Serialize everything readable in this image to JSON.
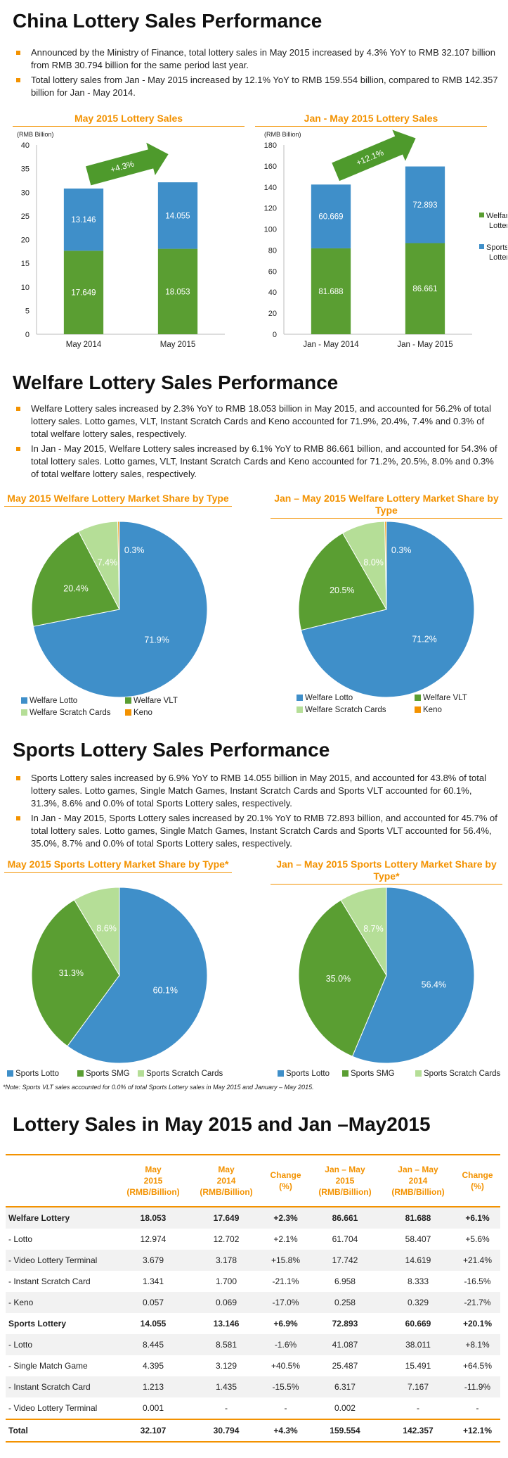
{
  "sections": {
    "china_title": "China Lottery Sales Performance",
    "welfare_title": "Welfare Lottery Sales Performance",
    "sports_title": "Sports Lottery Sales Performance",
    "table_title": "Lottery Sales in  May 2015 and Jan –May2015"
  },
  "china_bullets": [
    "Announced by the Ministry of Finance, total lottery sales in May 2015 increased by 4.3% YoY to RMB 32.107 billion from RMB 30.794 billion for the same period last year.",
    "Total lottery sales from Jan - May 2015 increased by 12.1% YoY to RMB 159.554 billion, compared to RMB 142.357 billion for Jan - May 2014."
  ],
  "welfare_bullets": [
    "Welfare Lottery sales increased by 2.3% YoY to RMB 18.053 billion in May 2015, and accounted for 56.2% of total lottery sales. Lotto games, VLT, Instant Scratch Cards and Keno accounted for 71.9%, 20.4%, 7.4% and 0.3% of total welfare lottery sales, respectively.",
    "In Jan - May 2015, Welfare Lottery sales increased by 6.1% YoY to RMB 86.661 billion, and accounted for 54.3% of total lottery sales. Lotto games, VLT, Instant Scratch Cards and Keno accounted for 71.2%, 20.5%, 8.0% and 0.3% of total welfare lottery sales, respectively."
  ],
  "sports_bullets": [
    "Sports Lottery sales increased by 6.9% YoY to RMB 14.055 billion in May 2015, and accounted for 43.8% of total lottery sales. Lotto games, Single Match Games, Instant Scratch Cards and Sports VLT accounted for 60.1%, 31.3%, 8.6% and 0.0% of total Sports Lottery sales, respectively.",
    "In Jan - May 2015, Sports Lottery sales increased by 20.1% YoY to RMB 72.893 billion, and accounted for 45.7% of total lottery sales. Lotto games, Single Match Games, Instant Scratch Cards and Sports VLT accounted for 56.4%, 35.0%, 8.7% and 0.0% of total Sports Lottery sales, respectively."
  ],
  "colors": {
    "accent": "#f39200",
    "welfare_green": "#5a9e32",
    "sports_blue": "#3f8fc9",
    "light_green": "#b5de97",
    "keno_orange": "#f39200",
    "arrow_green": "#4e9a2c"
  },
  "chart_data": [
    {
      "type": "bar",
      "stacked": true,
      "title": "May 2015 Lottery Sales",
      "ylabel": "(RMB Billion)",
      "categories": [
        "May 2014",
        "May 2015"
      ],
      "series": [
        {
          "name": "Welfare Lottery",
          "values": [
            17.649,
            18.053
          ]
        },
        {
          "name": "Sports Lottery",
          "values": [
            13.146,
            14.055
          ]
        }
      ],
      "ylim": [
        0,
        40
      ],
      "yticks": [
        0,
        5,
        10,
        15,
        20,
        25,
        30,
        35,
        40
      ],
      "annotation": "+4.3%",
      "legend": "none"
    },
    {
      "type": "bar",
      "stacked": true,
      "title": "Jan - May 2015 Lottery Sales",
      "ylabel": "(RMB Billion)",
      "categories": [
        "Jan - May 2014",
        "Jan - May 2015"
      ],
      "series": [
        {
          "name": "Welfare Lottery",
          "values": [
            81.688,
            86.661
          ]
        },
        {
          "name": "Sports Lottery",
          "values": [
            60.669,
            72.893
          ]
        }
      ],
      "ylim": [
        0,
        180
      ],
      "yticks": [
        0,
        20,
        40,
        60,
        80,
        100,
        120,
        140,
        160,
        180
      ],
      "annotation": "+12.1%",
      "legend": "right",
      "legend_labels": [
        "Welfare\nLottery",
        "Sports\nLottery"
      ]
    },
    {
      "type": "pie",
      "title": "May 2015 Welfare Lottery Market Share by Type",
      "labels": [
        "Welfare Lotto",
        "Welfare VLT",
        "Welfare Scratch Cards",
        "Keno"
      ],
      "values": [
        71.9,
        20.4,
        7.4,
        0.3
      ],
      "value_labels": [
        "71.9%",
        "20.4%",
        "7.4%",
        "0.3%"
      ],
      "legend": "bottom"
    },
    {
      "type": "pie",
      "title": "Jan – May 2015 Welfare Lottery Market Share by Type",
      "labels": [
        "Welfare Lotto",
        "Welfare VLT",
        "Welfare Scratch Cards",
        "Keno"
      ],
      "values": [
        71.2,
        20.5,
        8.0,
        0.3
      ],
      "value_labels": [
        "71.2%",
        "20.5%",
        "8.0%",
        "0.3%"
      ],
      "legend": "bottom"
    },
    {
      "type": "pie",
      "title": "May 2015 Sports Lottery Market Share by Type*",
      "labels": [
        "Sports Lotto",
        "Sports SMG",
        "Sports Scratch Cards"
      ],
      "values": [
        60.1,
        31.3,
        8.6
      ],
      "value_labels": [
        "60.1%",
        "31.3%",
        "8.6%"
      ],
      "legend": "bottom"
    },
    {
      "type": "pie",
      "title": "Jan – May 2015 Sports Lottery Market Share by Type*",
      "labels": [
        "Sports Lotto",
        "Sports SMG",
        "Sports Scratch Cards"
      ],
      "values": [
        56.4,
        35.0,
        8.7
      ],
      "value_labels": [
        "56.4%",
        "35.0%",
        "8.7%"
      ],
      "legend": "bottom"
    },
    {
      "type": "table",
      "columns": [
        "",
        "May 2015 (RMB/Billion)",
        "May 2014 (RMB/Billion)",
        "Change (%)",
        "Jan – May 2015 (RMB/Billion)",
        "Jan – May 2014 (RMB/Billion)",
        "Change (%)"
      ],
      "rows": [
        [
          "Welfare Lottery",
          "18.053",
          "17.649",
          "+2.3%",
          "86.661",
          "81.688",
          "+6.1%"
        ],
        [
          "- Lotto",
          "12.974",
          "12.702",
          "+2.1%",
          "61.704",
          "58.407",
          "+5.6%"
        ],
        [
          "- Video Lottery Terminal",
          "3.679",
          "3.178",
          "+15.8%",
          "17.742",
          "14.619",
          "+21.4%"
        ],
        [
          "- Instant Scratch Card",
          "1.341",
          "1.700",
          "-21.1%",
          "6.958",
          "8.333",
          "-16.5%"
        ],
        [
          "- Keno",
          "0.057",
          "0.069",
          "-17.0%",
          "0.258",
          "0.329",
          "-21.7%"
        ],
        [
          "Sports Lottery",
          "14.055",
          "13.146",
          "+6.9%",
          "72.893",
          "60.669",
          "+20.1%"
        ],
        [
          "- Lotto",
          "8.445",
          "8.581",
          "-1.6%",
          "41.087",
          "38.011",
          "+8.1%"
        ],
        [
          "- Single Match Game",
          "4.395",
          "3.129",
          "+40.5%",
          "25.487",
          "15.491",
          "+64.5%"
        ],
        [
          "- Instant Scratch Card",
          "1.213",
          "1.435",
          "-15.5%",
          "6.317",
          "7.167",
          "-11.9%"
        ],
        [
          "- Video Lottery Terminal",
          "0.001",
          "-",
          "-",
          "0.002",
          "-",
          "-"
        ],
        [
          "Total",
          "32.107",
          "30.794",
          "+4.3%",
          "159.554",
          "142.357",
          "+12.1%"
        ]
      ]
    }
  ],
  "note": "*Note: Sports VLT sales accounted for 0.0% of total Sports Lottery sales in May 2015 and January – May 2015."
}
